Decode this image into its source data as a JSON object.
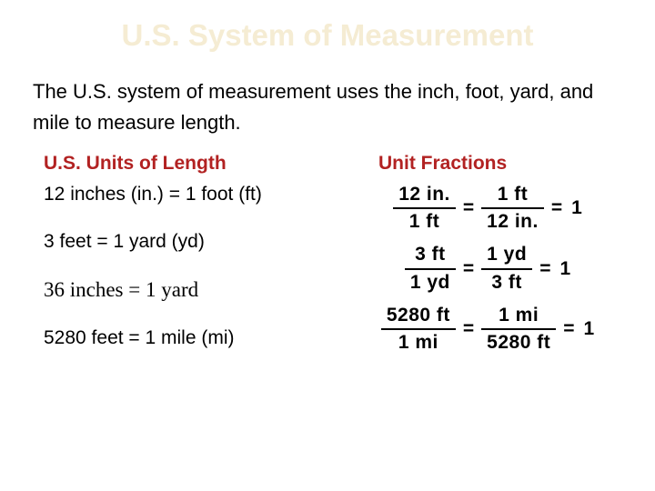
{
  "title": "U.S. System of Measurement",
  "intro": "The U.S. system of measurement uses the inch, foot, yard, and mile to measure length.",
  "left": {
    "heading": "U.S. Units of Length",
    "items": [
      {
        "text": "12 inches (in.) = 1 foot (ft)",
        "serif": false
      },
      {
        "text": "3 feet = 1 yard (yd)",
        "serif": false
      },
      {
        "text": "36 inches = 1 yard",
        "serif": true
      },
      {
        "text": "5280 feet = 1 mile (mi)",
        "serif": false
      }
    ]
  },
  "right": {
    "heading": "Unit Fractions",
    "equations": [
      {
        "n1": "12 in.",
        "d1": "1 ft",
        "n2": "1 ft",
        "d2": "12 in.",
        "r": "1"
      },
      {
        "n1": "3 ft",
        "d1": "1 yd",
        "n2": "1 yd",
        "d2": "3 ft",
        "r": "1"
      },
      {
        "n1": "5280 ft",
        "d1": "1 mi",
        "n2": "1 mi",
        "d2": "5280 ft",
        "r": "1"
      }
    ]
  },
  "colors": {
    "title": "#f5ecd3",
    "heading": "#b22222",
    "text": "#000000",
    "background": "#ffffff"
  }
}
